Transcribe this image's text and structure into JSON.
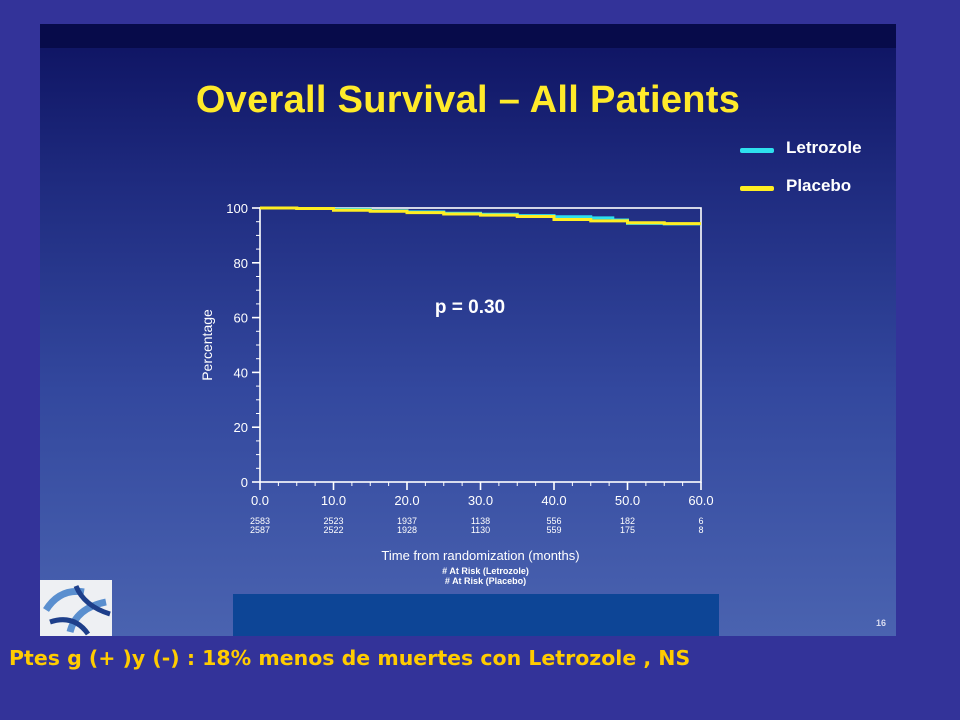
{
  "slide": {
    "title": "Overall Survival – All Patients",
    "page_number": "16",
    "caption": "Ptes g (+ )y (-) : 18% menos de muertes con Letrozole , NS",
    "colors": {
      "background": "#333399",
      "title": "#ffea2a",
      "caption": "#ffcc00"
    }
  },
  "chart_data": {
    "type": "line",
    "title": "",
    "xlabel": "Time from randomization (months)",
    "ylabel": "Percentage",
    "xlim": [
      0,
      60
    ],
    "ylim": [
      0,
      100
    ],
    "x_ticks": [
      "0.0",
      "10.0",
      "20.0",
      "30.0",
      "40.0",
      "50.0",
      "60.0"
    ],
    "y_ticks": [
      "0",
      "20",
      "40",
      "60",
      "80",
      "100"
    ],
    "legend_position": "top-right",
    "annotation": "p = 0.30",
    "series": [
      {
        "name": "Letrozole",
        "color": "#2ee0ee",
        "x": [
          0,
          5,
          10,
          15,
          20,
          25,
          30,
          35,
          40,
          45,
          48,
          50,
          55,
          60
        ],
        "y": [
          100,
          99.8,
          99.5,
          99.0,
          98.6,
          98.1,
          97.7,
          97.2,
          96.8,
          96.4,
          95.6,
          94.4,
          94.2,
          94.2
        ]
      },
      {
        "name": "Placebo",
        "color": "#ffee22",
        "x": [
          0,
          5,
          10,
          15,
          20,
          25,
          30,
          35,
          40,
          45,
          50,
          55,
          60
        ],
        "y": [
          100,
          99.8,
          99.2,
          98.8,
          98.3,
          97.8,
          97.4,
          96.9,
          95.8,
          95.3,
          94.6,
          94.3,
          94.3
        ]
      }
    ],
    "at_risk": {
      "rows": [
        {
          "label": "# At Risk (Letrozole)",
          "values": [
            "2583",
            "2523",
            "1937",
            "1138",
            "556",
            "182",
            "6"
          ]
        },
        {
          "label": "# At Risk (Placebo)",
          "values": [
            "2587",
            "2522",
            "1928",
            "1130",
            "559",
            "175",
            "8"
          ]
        }
      ]
    }
  }
}
